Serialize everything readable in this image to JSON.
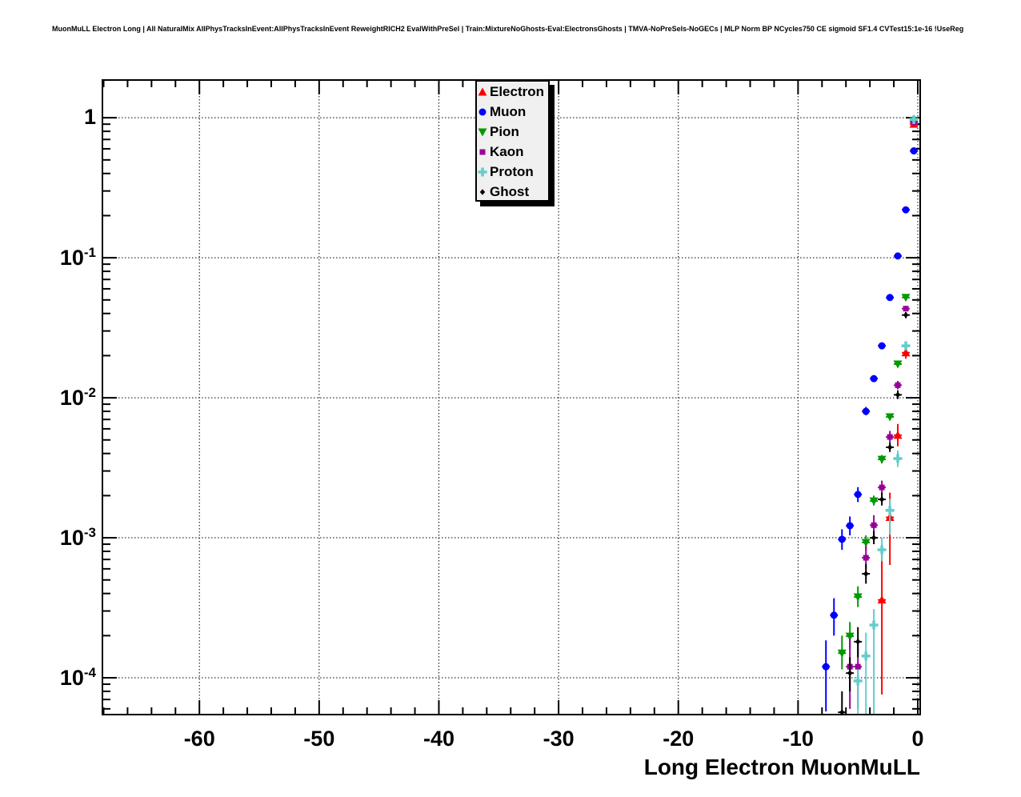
{
  "title": "MuonMuLL Electron Long | All NaturalMix AllPhysTracksInEvent:AllPhysTracksInEvent ReweightRICH2 EvalWithPreSel | Train:MixtureNoGhosts-Eval:ElectronsGhosts | TMVA-NoPreSels-NoGECs | MLP Norm BP NCycles750 CE sigmoid SF1.4 CVTest15:1e-16 !UseReg",
  "axes": {
    "x": {
      "title": "Long Electron MuonMuLL",
      "major_ticks": [
        -60,
        -50,
        -40,
        -30,
        -20,
        -10,
        0
      ],
      "minor_step": 2,
      "range": [
        -68.1,
        0.2
      ]
    },
    "y": {
      "scale": "log",
      "decade_exponents": [
        0,
        -1,
        -2,
        -3,
        -4
      ],
      "range": [
        5.46e-05,
        1.86
      ]
    }
  },
  "legend": {
    "entries": [
      {
        "label": "Electron",
        "color": "#ff0000",
        "marker": "triangle-up"
      },
      {
        "label": "Muon",
        "color": "#0000ff",
        "marker": "circle"
      },
      {
        "label": "Pion",
        "color": "#009900",
        "marker": "triangle-down"
      },
      {
        "label": "Kaon",
        "color": "#990099",
        "marker": "square"
      },
      {
        "label": "Proton",
        "color": "#66cccc",
        "marker": "cross"
      },
      {
        "label": "Ghost",
        "color": "#000000",
        "marker": "diamond"
      }
    ]
  },
  "chart_data": {
    "type": "scatter",
    "title": "MuonMuLL Electron Long",
    "xlabel": "Long Electron MuonMuLL",
    "ylabel": "",
    "x_range": [
      -68.1,
      0.2
    ],
    "y_range": [
      5.46e-05,
      1.86
    ],
    "y_scale": "log",
    "grid": "dotted-on-major-ticks",
    "bin_half_width": 0.33,
    "series": [
      {
        "name": "Electron",
        "color": "#ff0000",
        "marker": "triangle-up",
        "points": [
          [
            -0.33,
            0.9,
            0.9,
            0.9
          ],
          [
            -1.0,
            0.021,
            0.019,
            0.023
          ],
          [
            -1.67,
            0.0054,
            0.0045,
            0.0065
          ],
          [
            -2.33,
            0.0014,
            0.00064,
            0.0021
          ],
          [
            -3.0,
            0.00036,
            7.6e-05,
            0.00086
          ]
        ]
      },
      {
        "name": "Muon",
        "color": "#0000ff",
        "marker": "circle",
        "points": [
          [
            -0.33,
            0.58,
            0.58,
            0.58
          ],
          [
            -1.0,
            0.22,
            0.22,
            0.22
          ],
          [
            -1.67,
            0.103,
            0.103,
            0.103
          ],
          [
            -2.33,
            0.052,
            0.052,
            0.052
          ],
          [
            -3.0,
            0.0235,
            0.0235,
            0.0235
          ],
          [
            -3.67,
            0.0137,
            0.0137,
            0.0137
          ],
          [
            -4.33,
            0.008,
            0.0075,
            0.0086
          ],
          [
            -5.0,
            0.00204,
            0.0018,
            0.0023
          ],
          [
            -5.67,
            0.00122,
            0.00104,
            0.00142
          ],
          [
            -6.33,
            0.000975,
            0.00082,
            0.00115
          ],
          [
            -7.0,
            0.00028,
            0.0002,
            0.00037
          ],
          [
            -7.67,
            0.00012,
            5.75e-05,
            0.000185
          ]
        ]
      },
      {
        "name": "Pion",
        "color": "#009900",
        "marker": "triangle-down",
        "points": [
          [
            -0.33,
            0.95,
            0.95,
            0.95
          ],
          [
            -1.0,
            0.052,
            0.052,
            0.052
          ],
          [
            -1.67,
            0.0174,
            0.0174,
            0.0174
          ],
          [
            -2.33,
            0.0073,
            0.0073,
            0.0073
          ],
          [
            -3.0,
            0.00363,
            0.0034,
            0.0039
          ],
          [
            -3.67,
            0.00183,
            0.0017,
            0.002
          ],
          [
            -4.33,
            0.000925,
            0.00082,
            0.00104
          ],
          [
            -5.0,
            0.000378,
            0.00032,
            0.00045
          ],
          [
            -5.67,
            0.000198,
            0.00016,
            0.00025
          ],
          [
            -6.33,
            0.00015,
            0.000115,
            0.0002
          ]
        ]
      },
      {
        "name": "Kaon",
        "color": "#990099",
        "marker": "square",
        "points": [
          [
            -0.33,
            0.93,
            0.93,
            0.93
          ],
          [
            -1.0,
            0.0433,
            0.0433,
            0.0433
          ],
          [
            -1.67,
            0.0123,
            0.0115,
            0.0132
          ],
          [
            -2.33,
            0.00525,
            0.0048,
            0.0058
          ],
          [
            -3.0,
            0.00229,
            0.00205,
            0.00256
          ],
          [
            -3.67,
            0.00123,
            0.00105,
            0.00145
          ],
          [
            -4.33,
            0.00072,
            0.0006,
            0.00088
          ],
          [
            -5.0,
            0.00012,
            6e-05,
            0.00019
          ],
          [
            -5.67,
            0.00012,
            6e-05,
            0.00019
          ]
        ]
      },
      {
        "name": "Proton",
        "color": "#66cccc",
        "marker": "cross",
        "points": [
          [
            -0.33,
            0.97,
            0.97,
            0.97
          ],
          [
            -1.0,
            0.0235,
            0.022,
            0.025
          ],
          [
            -1.67,
            0.00368,
            0.0032,
            0.0042
          ],
          [
            -2.33,
            0.00157,
            0.00105,
            0.0019
          ],
          [
            -3.0,
            0.00082,
            0.00068,
            0.001
          ],
          [
            -3.67,
            0.000238,
            5.5e-05,
            0.00031
          ],
          [
            -4.33,
            0.000143,
            5.5e-05,
            0.00021
          ],
          [
            -5.0,
            9.5e-05,
            5e-05,
            0.000115
          ]
        ]
      },
      {
        "name": "Ghost",
        "color": "#000000",
        "marker": "diamond",
        "points": [
          [
            -1.0,
            0.039,
            0.037,
            0.041
          ],
          [
            -1.67,
            0.0105,
            0.0098,
            0.0113
          ],
          [
            -2.33,
            0.00443,
            0.0041,
            0.0048
          ],
          [
            -3.0,
            0.00188,
            0.0017,
            0.0021
          ],
          [
            -3.67,
            0.001,
            0.0009,
            0.00112
          ],
          [
            -4.33,
            0.000553,
            0.00047,
            0.00065
          ],
          [
            -5.0,
            0.000181,
            0.00014,
            0.00023
          ],
          [
            -5.67,
            0.000108,
            8e-05,
            0.00014
          ],
          [
            -6.33,
            5.67e-05,
            5e-05,
            8e-05
          ]
        ]
      }
    ]
  }
}
